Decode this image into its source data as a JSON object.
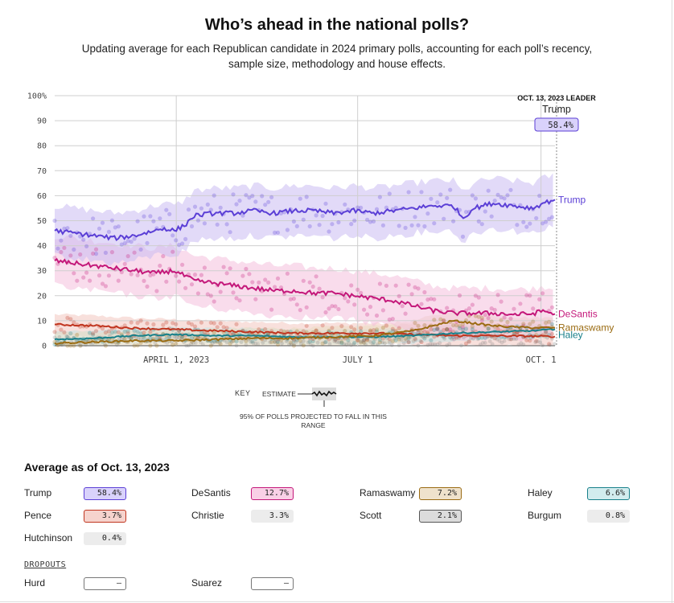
{
  "title": "Who’s ahead in the national polls?",
  "subtitle": "Updating average for each Republican candidate in 2024 primary polls, accounting for each poll’s recency, sample size, methodology and house effects.",
  "chart_data": {
    "type": "line",
    "title": "Who’s ahead in the national polls?",
    "ylim": [
      0,
      100
    ],
    "y_ticks": [
      0,
      10,
      20,
      30,
      40,
      50,
      60,
      70,
      80,
      90,
      100
    ],
    "y_tick_labels": [
      "0",
      "10",
      "20",
      "30",
      "40",
      "50",
      "60",
      "70",
      "80",
      "90",
      "100%"
    ],
    "x_domain": [
      0,
      251
    ],
    "x_ticks": [
      {
        "day": 61,
        "label": "APRIL 1, 2023"
      },
      {
        "day": 152,
        "label": "JULY 1"
      },
      {
        "day": 244,
        "label": "OCT. 1"
      }
    ],
    "leader": {
      "header": "OCT. 13, 2023 LEADER",
      "name": "Trump",
      "value_label": "58.4%",
      "value": 58.4
    },
    "series": [
      {
        "name": "Trump",
        "color": "#5b3fd6",
        "band_color": "#cbbcf2",
        "x": [
          0,
          10,
          20,
          30,
          40,
          50,
          55,
          60,
          65,
          70,
          80,
          90,
          100,
          110,
          120,
          130,
          140,
          150,
          160,
          170,
          180,
          190,
          200,
          205,
          210,
          220,
          230,
          240,
          245,
          251
        ],
        "values": [
          46,
          45,
          44,
          43,
          44,
          46,
          47,
          46,
          48,
          52,
          53,
          53,
          54,
          53,
          54,
          54,
          53,
          54,
          53,
          54,
          55,
          56,
          56,
          51,
          55,
          57,
          56,
          55,
          57,
          58.4
        ],
        "band_half_width": 10
      },
      {
        "name": "DeSantis",
        "color": "#c4187a",
        "band_color": "#f4bfdc",
        "x": [
          0,
          10,
          20,
          30,
          40,
          50,
          60,
          65,
          70,
          80,
          90,
          100,
          110,
          120,
          130,
          140,
          150,
          160,
          170,
          180,
          190,
          200,
          210,
          220,
          230,
          240,
          245,
          251
        ],
        "values": [
          34,
          33,
          32,
          31,
          30,
          29,
          30,
          28,
          26,
          25,
          24,
          23,
          22,
          22,
          21,
          21,
          20,
          19,
          18,
          16,
          14,
          13,
          13,
          13,
          12.5,
          12.8,
          14,
          12.7
        ],
        "band_half_width": 10
      },
      {
        "name": "Ramaswamy",
        "color": "#9a6b12",
        "band_color": "#eadcc2",
        "x": [
          0,
          20,
          40,
          60,
          80,
          100,
          120,
          140,
          160,
          180,
          190,
          200,
          210,
          220,
          230,
          240,
          251
        ],
        "values": [
          1,
          1.5,
          2,
          2,
          2.5,
          3,
          3,
          3.5,
          4,
          6,
          8,
          10,
          9,
          8,
          7.5,
          7.2,
          7.2
        ],
        "band_half_width": 4
      },
      {
        "name": "Haley",
        "color": "#18808a",
        "band_color": "#c2e2e4",
        "x": [
          0,
          20,
          40,
          60,
          80,
          100,
          120,
          140,
          160,
          180,
          200,
          220,
          240,
          251
        ],
        "values": [
          2.5,
          3,
          4,
          4.5,
          4,
          4,
          3.5,
          3.5,
          3.5,
          4,
          5,
          5.5,
          6,
          6.6
        ],
        "band_half_width": 3
      },
      {
        "name": "Pence",
        "color": "#c0351f",
        "band_color": "#f2c7c0",
        "x": [
          0,
          20,
          40,
          60,
          80,
          100,
          120,
          140,
          160,
          180,
          200,
          220,
          240,
          251
        ],
        "values": [
          8.5,
          8,
          7,
          6.5,
          6,
          5.5,
          5,
          5,
          5,
          4.5,
          4,
          4,
          3.8,
          3.7
        ],
        "band_half_width": 4
      }
    ],
    "key": {
      "label": "KEY",
      "estimate": "ESTIMATE",
      "range": "95% OF POLLS PROJECTED TO FALL IN THIS RANGE"
    }
  },
  "averages": {
    "heading": "Average as of Oct. 13, 2023",
    "candidates": [
      {
        "name": "Trump",
        "value": "58.4%",
        "fill": "#d9d2fb",
        "border": "#5b3fd6"
      },
      {
        "name": "DeSantis",
        "value": "12.7%",
        "fill": "#f9d0e6",
        "border": "#c4187a"
      },
      {
        "name": "Ramaswamy",
        "value": "7.2%",
        "fill": "#efe2cc",
        "border": "#9a6b12"
      },
      {
        "name": "Haley",
        "value": "6.6%",
        "fill": "#d2ecee",
        "border": "#18808a"
      },
      {
        "name": "Pence",
        "value": "3.7%",
        "fill": "#f6d3cd",
        "border": "#c0351f"
      },
      {
        "name": "Christie",
        "value": "3.3%",
        "fill": "#ececec",
        "border": "#ececec"
      },
      {
        "name": "Scott",
        "value": "2.1%",
        "fill": "#dcdcdc",
        "border": "#555555"
      },
      {
        "name": "Burgum",
        "value": "0.8%",
        "fill": "#ececec",
        "border": "#ececec"
      },
      {
        "name": "Hutchinson",
        "value": "0.4%",
        "fill": "#ececec",
        "border": "#ececec"
      }
    ],
    "dropouts_heading": "DROPOUTS",
    "dropouts": [
      {
        "name": "Hurd",
        "value": "–",
        "fill": "#ffffff",
        "border": "#777777"
      },
      {
        "name": "Suarez",
        "value": "–",
        "fill": "#ffffff",
        "border": "#777777"
      }
    ]
  }
}
